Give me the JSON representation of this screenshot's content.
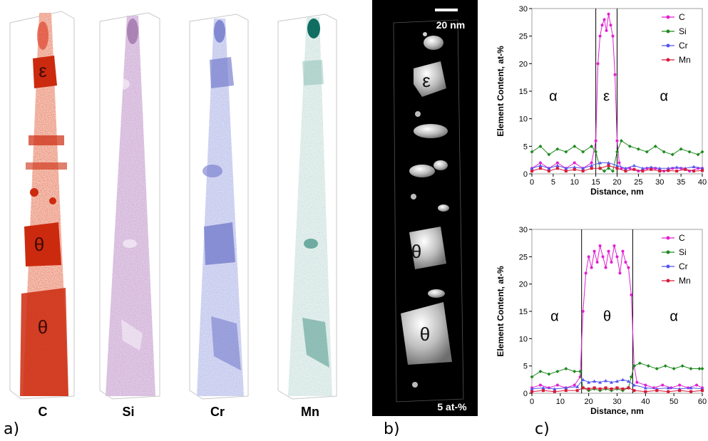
{
  "panel_a": {
    "label": "a)",
    "elements": [
      {
        "symbol": "C",
        "color": "#d92a12",
        "phases": [
          "ε",
          "θ",
          "θ"
        ]
      },
      {
        "symbol": "Si",
        "color": "#8c5a9a",
        "phases": []
      },
      {
        "symbol": "Cr",
        "color": "#6f77c9",
        "phases": []
      },
      {
        "symbol": "Mn",
        "color": "#7fb7ae",
        "phases": []
      }
    ]
  },
  "panel_b": {
    "label": "b)",
    "scale_bar": "20 nm",
    "iso_label": "5 at-%",
    "phases": [
      "ε",
      "θ",
      "θ"
    ]
  },
  "panel_c": {
    "label": "c)",
    "legend_colors": {
      "C": "#e020d0",
      "Si": "#1f8a1f",
      "Cr": "#5555ee",
      "Mn": "#d81b3a"
    }
  },
  "chart_data": [
    {
      "type": "line",
      "xlabel": "Distance, nm",
      "ylabel": "Element Content, at-%",
      "xlim": [
        0,
        40
      ],
      "ylim": [
        0,
        30
      ],
      "xticks": [
        0,
        5,
        10,
        15,
        20,
        25,
        30,
        35,
        40
      ],
      "yticks": [
        0,
        5,
        10,
        15,
        20,
        25,
        30
      ],
      "boundaries": [
        15,
        20
      ],
      "regions": [
        {
          "label": "α",
          "x": 5,
          "y": 14
        },
        {
          "label": "ε",
          "x": 17.5,
          "y": 14
        },
        {
          "label": "α",
          "x": 31,
          "y": 14
        }
      ],
      "series": [
        {
          "name": "C",
          "color": "#e020d0",
          "x": [
            0,
            2,
            4,
            6,
            8,
            10,
            12,
            14,
            15,
            15.5,
            16,
            16.5,
            17,
            17.5,
            18,
            18.5,
            19,
            19.5,
            20,
            20.5,
            21,
            23,
            25,
            27,
            29,
            31,
            33,
            35,
            37,
            39,
            40
          ],
          "y": [
            1,
            2,
            1,
            2,
            1,
            2,
            1,
            2,
            6,
            20,
            25,
            27,
            28,
            26,
            29,
            27,
            25,
            18,
            6,
            2,
            1,
            1,
            0.5,
            1,
            1,
            0.5,
            1,
            1,
            0.5,
            1,
            1
          ]
        },
        {
          "name": "Si",
          "color": "#1f8a1f",
          "x": [
            0,
            2,
            4,
            6,
            8,
            10,
            12,
            14,
            15,
            16,
            17,
            18,
            19,
            20,
            21,
            23,
            25,
            27,
            29,
            31,
            33,
            35,
            37,
            39,
            40
          ],
          "y": [
            4,
            5,
            3.5,
            4.5,
            4,
            5,
            4,
            5,
            4,
            1,
            0.5,
            1,
            0.5,
            4,
            6,
            5,
            4.5,
            4,
            5,
            4,
            3.5,
            4.5,
            4,
            3.5,
            4
          ]
        },
        {
          "name": "Cr",
          "color": "#5555ee",
          "x": [
            0,
            2,
            4,
            6,
            8,
            10,
            12,
            14,
            16,
            18,
            20,
            22,
            24,
            26,
            28,
            30,
            32,
            34,
            36,
            38,
            40
          ],
          "y": [
            1,
            1.5,
            1,
            1.5,
            1,
            1.2,
            1,
            1.5,
            2,
            2,
            1.5,
            1,
            1.5,
            1,
            1.2,
            1,
            1,
            1.2,
            1,
            1.3,
            1
          ]
        },
        {
          "name": "Mn",
          "color": "#d81b3a",
          "x": [
            0,
            2,
            4,
            6,
            8,
            10,
            12,
            14,
            16,
            18,
            20,
            22,
            24,
            26,
            28,
            30,
            32,
            34,
            36,
            38,
            40
          ],
          "y": [
            0.5,
            1,
            0.5,
            1,
            0.5,
            0.8,
            0.5,
            1,
            1,
            1.5,
            1,
            0.5,
            0.8,
            0.5,
            0.8,
            0.5,
            0.6,
            0.5,
            0.8,
            0.5,
            0.6
          ]
        }
      ]
    },
    {
      "type": "line",
      "xlabel": "Distance, nm",
      "ylabel": "Element Content, at-%",
      "xlim": [
        0,
        60
      ],
      "ylim": [
        0,
        30
      ],
      "xticks": [
        0,
        10,
        20,
        30,
        40,
        50,
        60
      ],
      "yticks": [
        0,
        5,
        10,
        15,
        20,
        25,
        30
      ],
      "boundaries": [
        17.5,
        35.5
      ],
      "regions": [
        {
          "label": "α",
          "x": 8,
          "y": 14
        },
        {
          "label": "θ",
          "x": 26.5,
          "y": 14
        },
        {
          "label": "α",
          "x": 50,
          "y": 14
        }
      ],
      "series": [
        {
          "name": "C",
          "color": "#e020d0",
          "x": [
            0,
            3,
            6,
            9,
            12,
            15,
            17,
            18,
            19,
            20,
            21,
            22,
            23,
            24,
            25,
            26,
            27,
            28,
            29,
            30,
            31,
            32,
            33,
            34,
            35,
            36,
            37,
            40,
            43,
            46,
            49,
            52,
            55,
            58,
            60
          ],
          "y": [
            1,
            1.5,
            1,
            1.5,
            1,
            1.5,
            3,
            15,
            22,
            25,
            23,
            26,
            24,
            27,
            25,
            23,
            26,
            24,
            27,
            25,
            22,
            26,
            24,
            23,
            18,
            5,
            2,
            1.5,
            1,
            1.5,
            1,
            1.5,
            1,
            1.5,
            1
          ]
        },
        {
          "name": "Si",
          "color": "#1f8a1f",
          "x": [
            0,
            3,
            6,
            9,
            12,
            15,
            17,
            18,
            20,
            22,
            24,
            26,
            28,
            30,
            32,
            34,
            35,
            36,
            38,
            41,
            44,
            47,
            50,
            53,
            56,
            59,
            60
          ],
          "y": [
            3,
            4,
            3.5,
            4,
            4.5,
            4,
            4,
            1,
            0.5,
            0.8,
            0.5,
            0.8,
            0.5,
            0.8,
            0.5,
            1,
            3,
            5,
            5.5,
            5,
            4.5,
            5,
            4.5,
            5,
            4.5,
            4.5,
            4.5
          ]
        },
        {
          "name": "Cr",
          "color": "#5555ee",
          "x": [
            0,
            4,
            8,
            12,
            16,
            18,
            20,
            22,
            24,
            26,
            28,
            30,
            32,
            34,
            36,
            40,
            44,
            48,
            52,
            56,
            60
          ],
          "y": [
            0.8,
            1,
            0.8,
            1,
            1.2,
            2.5,
            2,
            2.2,
            2,
            2.3,
            2,
            2.2,
            2.5,
            2.2,
            1.5,
            1,
            0.8,
            1,
            0.8,
            1,
            0.8
          ]
        },
        {
          "name": "Mn",
          "color": "#d81b3a",
          "x": [
            0,
            4,
            8,
            12,
            16,
            18,
            20,
            22,
            24,
            26,
            28,
            30,
            32,
            34,
            36,
            40,
            44,
            48,
            52,
            56,
            60
          ],
          "y": [
            0.3,
            0.5,
            0.3,
            0.5,
            0.5,
            1,
            0.8,
            1,
            0.8,
            1,
            0.8,
            1,
            0.8,
            1,
            0.5,
            0.3,
            0.5,
            0.3,
            0.5,
            0.3,
            0.5
          ]
        }
      ]
    }
  ]
}
